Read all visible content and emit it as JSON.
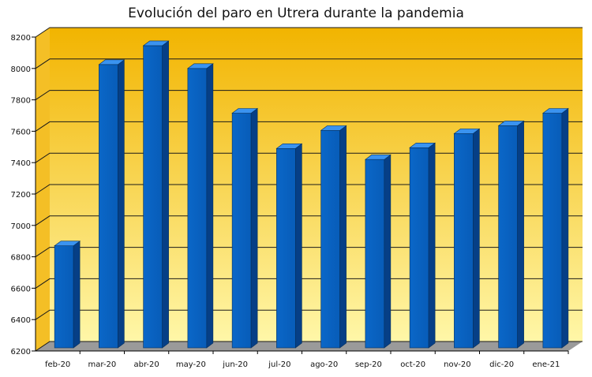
{
  "chart_data": {
    "type": "bar",
    "title": "Evolución del paro en Utrera durante la pandemia",
    "xlabel": "",
    "ylabel": "",
    "categories": [
      "feb-20",
      "mar-20",
      "abr-20",
      "may-20",
      "jun-20",
      "jul-20",
      "ago-20",
      "sep-20",
      "oct-20",
      "nov-20",
      "dic-20",
      "ene-21"
    ],
    "values": [
      6850,
      8005,
      8125,
      7980,
      7695,
      7470,
      7585,
      7400,
      7475,
      7565,
      7615,
      7695
    ],
    "ylim": [
      6200,
      8200
    ],
    "yticks": [
      6200,
      6400,
      6600,
      6800,
      7000,
      7200,
      7400,
      7600,
      7800,
      8000,
      8200
    ],
    "grid": true,
    "style": "3d",
    "colors": {
      "bar_front": "#0a67c8",
      "bar_side": "#063f86",
      "bar_top": "#3a93f0",
      "wall_top": "#f2b400",
      "wall_bottom": "#fff7a8",
      "floor": "#9a9a9a",
      "gridline": "#1a1a1a"
    }
  }
}
